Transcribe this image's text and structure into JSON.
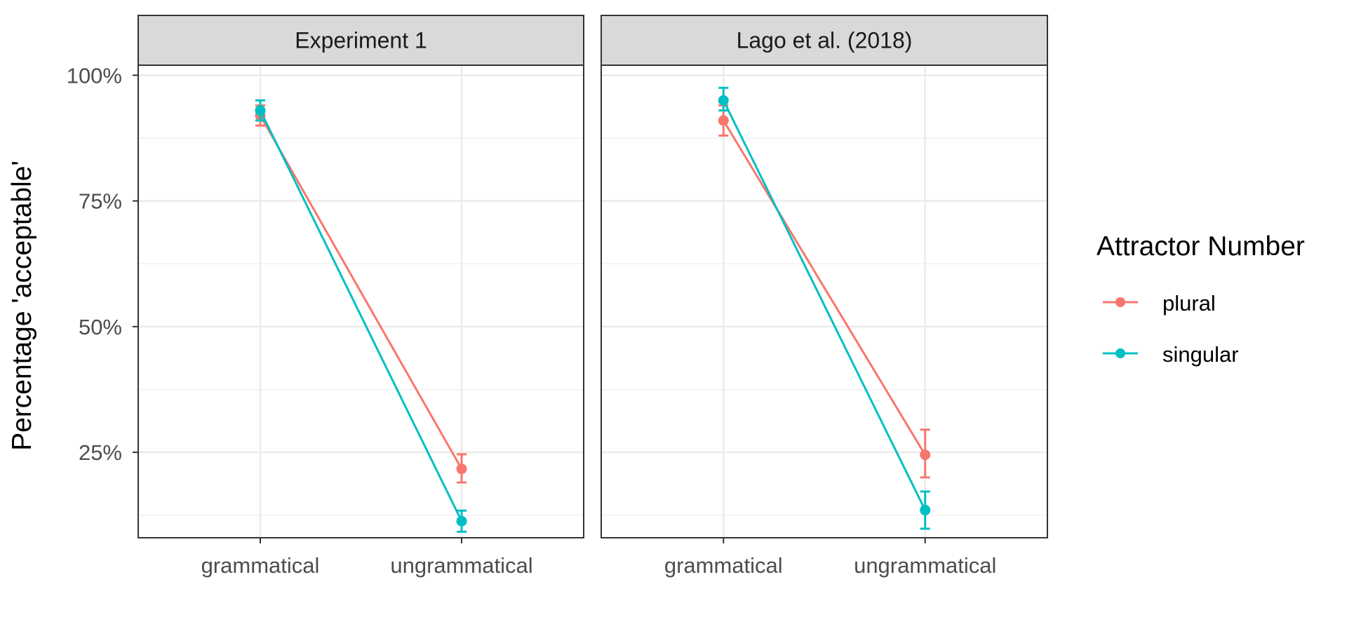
{
  "chart_data": {
    "type": "line",
    "ylabel": "Percentage 'acceptable'",
    "xlabel": "",
    "categories": [
      "grammatical",
      "ungrammatical"
    ],
    "ylim": [
      0.08,
      1.02
    ],
    "yticks": [
      0.25,
      0.5,
      0.75,
      1.0
    ],
    "ytick_labels": [
      "25%",
      "50%",
      "75%",
      "100%"
    ],
    "grid": true,
    "legend": {
      "title": "Attractor Number",
      "placement": "right",
      "entries": [
        "plural",
        "singular"
      ]
    },
    "colors": {
      "plural": "#F8766D",
      "singular": "#00BFC4"
    },
    "facets": [
      {
        "title": "Experiment 1",
        "series": [
          {
            "name": "plural",
            "values": [
              0.92,
              0.217
            ],
            "lower": [
              0.9,
              0.19
            ],
            "upper": [
              0.94,
              0.246
            ]
          },
          {
            "name": "singular",
            "values": [
              0.93,
              0.113
            ],
            "lower": [
              0.91,
              0.092
            ],
            "upper": [
              0.95,
              0.134
            ]
          }
        ]
      },
      {
        "title": "Lago et al. (2018)",
        "series": [
          {
            "name": "plural",
            "values": [
              0.91,
              0.245
            ],
            "lower": [
              0.88,
              0.2
            ],
            "upper": [
              0.94,
              0.295
            ]
          },
          {
            "name": "singular",
            "values": [
              0.95,
              0.135
            ],
            "lower": [
              0.93,
              0.098
            ],
            "upper": [
              0.975,
              0.172
            ]
          }
        ]
      }
    ]
  }
}
